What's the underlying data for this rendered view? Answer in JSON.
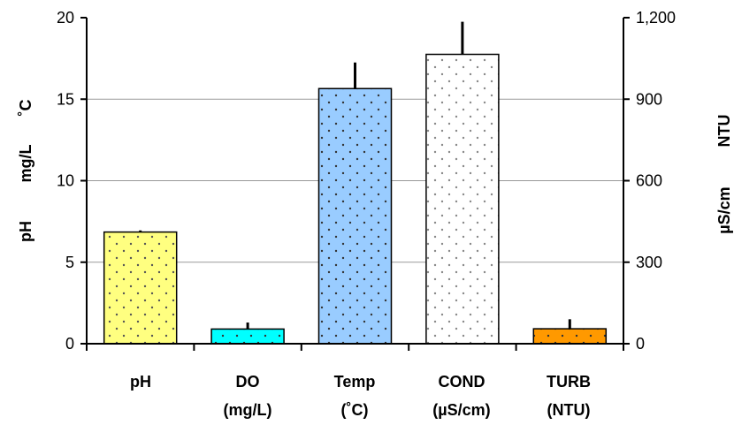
{
  "chart_data": {
    "type": "bar",
    "categories": [
      {
        "line1": "pH",
        "line2": ""
      },
      {
        "line1": "DO",
        "line2": "(mg/L)"
      },
      {
        "line1": "Temp",
        "line2": "(˚C)"
      },
      {
        "line1": "COND",
        "line2": "(µS/cm)"
      },
      {
        "line1": "TURB",
        "line2": "(NTU)"
      }
    ],
    "values": [
      6.85,
      0.9,
      15.65,
      1065,
      55
    ],
    "errors": [
      0.1,
      0.4,
      1.6,
      120,
      35
    ],
    "axis": [
      "left",
      "left",
      "left",
      "right",
      "right"
    ],
    "colors": [
      "#ffff80",
      "#00ffff",
      "#99ccff",
      "#ffffff",
      "#ff9900"
    ],
    "dot_colors": [
      "#555555",
      "#333333",
      "#333333",
      "#888888",
      "#333333"
    ],
    "left_axis": {
      "labels": [
        "pH",
        "mg/L",
        "˚C"
      ],
      "ylim": [
        0,
        20
      ],
      "ticks": [
        0,
        5,
        10,
        15,
        20
      ],
      "tick_labels": [
        "0",
        "5",
        "10",
        "15",
        "20"
      ]
    },
    "right_axis": {
      "labels": [
        "µS/cm",
        "NTU"
      ],
      "ylim": [
        0,
        1200
      ],
      "ticks": [
        0,
        300,
        600,
        900,
        1200
      ],
      "tick_labels": [
        "0",
        "300",
        "600",
        "900",
        "1,200"
      ]
    },
    "grid": true
  }
}
